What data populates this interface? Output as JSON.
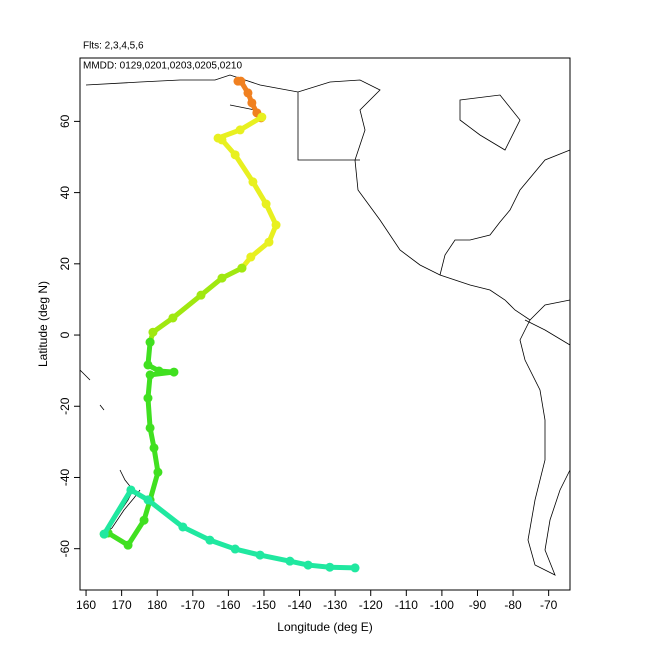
{
  "chart_data": {
    "type": "line",
    "subtitle": "Flts: 2,3,4,5,6",
    "annotation": "MMDD: 0129,0201,0203,0205,0210",
    "x_label": "Longitude (deg E)",
    "y_label": "Latitude (deg N)",
    "xlim": [
      158.3,
      296
    ],
    "ylim": [
      -71.6,
      77.8
    ],
    "xticks": [
      160,
      170,
      180,
      {
        "value": 190,
        "label": "-170"
      },
      {
        "value": 200,
        "label": "-160"
      },
      {
        "value": 210,
        "label": "-150"
      },
      {
        "value": 220,
        "label": "-140"
      },
      {
        "value": 230,
        "label": "-130"
      },
      {
        "value": 240,
        "label": "-120"
      },
      {
        "value": 250,
        "label": "-110"
      },
      {
        "value": 260,
        "label": "-100"
      },
      {
        "value": 270,
        "label": "-90"
      },
      {
        "value": 280,
        "label": "-80"
      },
      {
        "value": 290,
        "label": "-70"
      }
    ],
    "yticks": [
      -60,
      -40,
      -20,
      0,
      20,
      40,
      60
    ],
    "series": [
      {
        "color": "#f08020",
        "x": [
          202.7,
          203.5,
          205.5,
          206.6,
          208,
          209.2
        ],
        "y": [
          71.3,
          71.3,
          68,
          65.2,
          62.4,
          61
        ]
      },
      {
        "color": "#e8f020",
        "x": [
          209.4,
          203.3,
          197.1,
          198.2,
          201.9,
          206.9,
          210.6,
          213.4,
          211.4,
          206.3,
          203.8
        ],
        "y": [
          61.2,
          57.6,
          55.3,
          54.8,
          50.6,
          43,
          36.8,
          30.9,
          26.1,
          21.9,
          18.8
        ]
      },
      {
        "color": "#a0e810",
        "x": [
          203.8,
          198.2,
          192.3,
          184.4,
          178.8,
          178
        ],
        "y": [
          18.8,
          16,
          11.2,
          4.8,
          0.8,
          -2
        ]
      },
      {
        "color": "#40e020",
        "x": [
          178,
          177.4,
          180.5,
          184.7,
          178,
          177.4,
          178,
          179.1,
          180.2,
          178,
          176.3,
          171.8,
          166.2,
          165.1
        ],
        "y": [
          -2,
          -8.4,
          -10.1,
          -10.4,
          -11.2,
          -17.7,
          -26.1,
          -31.7,
          -38.5,
          -46.3,
          -52,
          -59,
          -55.6,
          -55.9
        ]
      },
      {
        "color": "#20e8a0",
        "x": [
          165.1,
          172.6,
          177.4,
          187.2,
          194.8,
          201.9,
          208.9,
          217.3,
          222.4,
          228.5,
          235.6
        ],
        "y": [
          -55.9,
          -43.5,
          -46.3,
          -53.9,
          -57.6,
          -60.1,
          -61.8,
          -63.5,
          -64.6,
          -65.2,
          -65.4
        ]
      }
    ]
  }
}
